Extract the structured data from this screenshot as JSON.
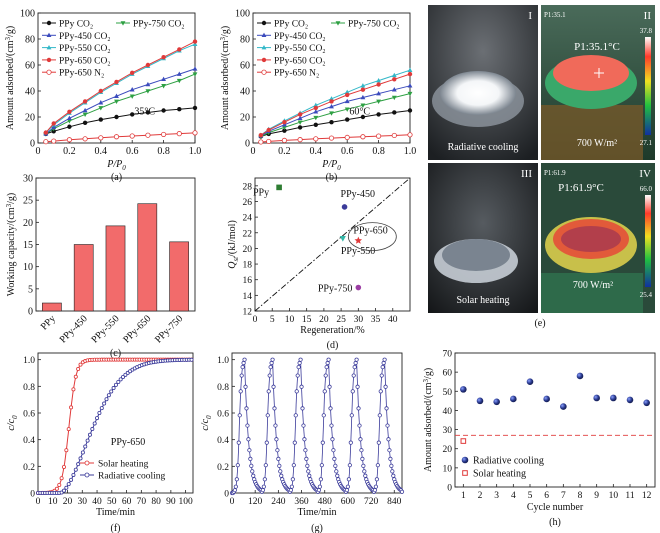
{
  "chart_data": [
    {
      "id": "a",
      "type": "line",
      "panel_label": "(a)",
      "xlabel": "P/P0",
      "ylabel": "Amount adsorbed/(cm3/g)",
      "xlim": [
        0,
        1.0
      ],
      "ylim": [
        0,
        100
      ],
      "xticks": [
        "0",
        "0.2",
        "0.4",
        "0.6",
        "0.8",
        "1.0"
      ],
      "yticks": [
        "0",
        "20",
        "40",
        "60",
        "80",
        "100"
      ],
      "annotation": "35°C",
      "series": [
        {
          "name": "PPy CO2",
          "legend": "PPy CO₂",
          "color": "#111111",
          "marker": "circle",
          "points": [
            [
              0.05,
              7
            ],
            [
              0.1,
              9
            ],
            [
              0.2,
              12.5
            ],
            [
              0.3,
              15.5
            ],
            [
              0.4,
              18
            ],
            [
              0.5,
              20
            ],
            [
              0.6,
              22
            ],
            [
              0.7,
              23.5
            ],
            [
              0.8,
              25
            ],
            [
              0.9,
              26
            ],
            [
              1.0,
              27
            ]
          ]
        },
        {
          "name": "PPy-750 CO2",
          "legend": "PPy-750 CO₂",
          "color": "#2ea043",
          "marker": "down",
          "points": [
            [
              0.05,
              7
            ],
            [
              0.1,
              11
            ],
            [
              0.2,
              17
            ],
            [
              0.3,
              22
            ],
            [
              0.4,
              27
            ],
            [
              0.5,
              32
            ],
            [
              0.6,
              36
            ],
            [
              0.7,
              40
            ],
            [
              0.8,
              44
            ],
            [
              0.9,
              48
            ],
            [
              1.0,
              53
            ]
          ]
        },
        {
          "name": "PPy-450 CO2",
          "legend": "PPy-450 CO₂",
          "color": "#3b4bbd",
          "marker": "up",
          "points": [
            [
              0.05,
              7
            ],
            [
              0.1,
              12
            ],
            [
              0.2,
              19
            ],
            [
              0.3,
              25
            ],
            [
              0.4,
              31
            ],
            [
              0.5,
              36
            ],
            [
              0.6,
              41
            ],
            [
              0.7,
              45
            ],
            [
              0.8,
              49
            ],
            [
              0.9,
              53
            ],
            [
              1.0,
              57
            ]
          ]
        },
        {
          "name": "PPy-550 CO2",
          "legend": "PPy-550 CO₂",
          "color": "#33b8c8",
          "marker": "up",
          "points": [
            [
              0.05,
              8
            ],
            [
              0.1,
              14
            ],
            [
              0.2,
              23
            ],
            [
              0.3,
              31
            ],
            [
              0.4,
              39
            ],
            [
              0.5,
              46
            ],
            [
              0.6,
              53
            ],
            [
              0.7,
              59
            ],
            [
              0.8,
              65
            ],
            [
              0.9,
              71
            ],
            [
              1.0,
              76
            ]
          ]
        },
        {
          "name": "PPy-650 CO2",
          "legend": "PPy-650 CO₂",
          "color": "#e03a3a",
          "marker": "circle",
          "points": [
            [
              0.05,
              8
            ],
            [
              0.1,
              15
            ],
            [
              0.2,
              24
            ],
            [
              0.3,
              32
            ],
            [
              0.4,
              40
            ],
            [
              0.5,
              47
            ],
            [
              0.6,
              54
            ],
            [
              0.7,
              60
            ],
            [
              0.8,
              66
            ],
            [
              0.9,
              72
            ],
            [
              1.0,
              78
            ]
          ]
        },
        {
          "name": "PPy-650 N2",
          "legend": "PPy-650 N₂",
          "color": "#e03a3a",
          "marker": "open-circle",
          "points": [
            [
              0.05,
              1
            ],
            [
              0.1,
              1.5
            ],
            [
              0.2,
              2.5
            ],
            [
              0.3,
              3.2
            ],
            [
              0.4,
              4
            ],
            [
              0.5,
              4.8
            ],
            [
              0.6,
              5.4
            ],
            [
              0.7,
              6
            ],
            [
              0.8,
              6.6
            ],
            [
              0.9,
              7.2
            ],
            [
              1.0,
              7.8
            ]
          ]
        }
      ]
    },
    {
      "id": "b",
      "type": "line",
      "panel_label": "(b)",
      "xlabel": "P/P0",
      "ylabel": "Amount adsorbed/(cm3/g)",
      "xlim": [
        0,
        1.0
      ],
      "ylim": [
        0,
        100
      ],
      "xticks": [
        "0",
        "0.2",
        "0.4",
        "0.6",
        "0.8",
        "1.0"
      ],
      "yticks": [
        "0",
        "20",
        "40",
        "60",
        "80",
        "100"
      ],
      "annotation": "60°C",
      "series": [
        {
          "name": "PPy CO2",
          "legend": "PPy CO₂",
          "color": "#111111",
          "marker": "circle",
          "points": [
            [
              0.05,
              5
            ],
            [
              0.1,
              7
            ],
            [
              0.2,
              9.5
            ],
            [
              0.3,
              12
            ],
            [
              0.4,
              14
            ],
            [
              0.5,
              16
            ],
            [
              0.6,
              18
            ],
            [
              0.7,
              20
            ],
            [
              0.8,
              22
            ],
            [
              0.9,
              23.5
            ],
            [
              1.0,
              25
            ]
          ]
        },
        {
          "name": "PPy-750 CO2",
          "legend": "PPy-750 CO₂",
          "color": "#2ea043",
          "marker": "down",
          "points": [
            [
              0.05,
              5
            ],
            [
              0.1,
              8
            ],
            [
              0.2,
              12
            ],
            [
              0.3,
              16
            ],
            [
              0.4,
              19.5
            ],
            [
              0.5,
              23
            ],
            [
              0.6,
              26
            ],
            [
              0.7,
              29
            ],
            [
              0.8,
              32
            ],
            [
              0.9,
              35
            ],
            [
              1.0,
              38
            ]
          ]
        },
        {
          "name": "PPy-450 CO2",
          "legend": "PPy-450 CO₂",
          "color": "#3b4bbd",
          "marker": "up",
          "points": [
            [
              0.05,
              5.5
            ],
            [
              0.1,
              9
            ],
            [
              0.2,
              14
            ],
            [
              0.3,
              19
            ],
            [
              0.4,
              24
            ],
            [
              0.5,
              28
            ],
            [
              0.6,
              32
            ],
            [
              0.7,
              35
            ],
            [
              0.8,
              38
            ],
            [
              0.9,
              41
            ],
            [
              1.0,
              44
            ]
          ]
        },
        {
          "name": "PPy-550 CO2",
          "legend": "PPy-550 CO₂",
          "color": "#33b8c8",
          "marker": "up",
          "points": [
            [
              0.05,
              6
            ],
            [
              0.1,
              10.5
            ],
            [
              0.2,
              17
            ],
            [
              0.3,
              23
            ],
            [
              0.4,
              29
            ],
            [
              0.5,
              34
            ],
            [
              0.6,
              39
            ],
            [
              0.7,
              44
            ],
            [
              0.8,
              48
            ],
            [
              0.9,
              52
            ],
            [
              1.0,
              56
            ]
          ]
        },
        {
          "name": "PPy-650 CO2",
          "legend": "PPy-650 CO₂",
          "color": "#e03a3a",
          "marker": "circle",
          "points": [
            [
              0.05,
              6
            ],
            [
              0.1,
              10
            ],
            [
              0.2,
              16
            ],
            [
              0.3,
              22
            ],
            [
              0.4,
              27
            ],
            [
              0.5,
              32
            ],
            [
              0.6,
              37
            ],
            [
              0.7,
              41
            ],
            [
              0.8,
              45
            ],
            [
              0.9,
              49
            ],
            [
              1.0,
              53
            ]
          ]
        },
        {
          "name": "PPy-650 N2",
          "legend": "PPy-650 N₂",
          "color": "#e03a3a",
          "marker": "open-circle",
          "points": [
            [
              0.05,
              0.8
            ],
            [
              0.1,
              1.2
            ],
            [
              0.2,
              2
            ],
            [
              0.3,
              2.6
            ],
            [
              0.4,
              3.2
            ],
            [
              0.5,
              3.8
            ],
            [
              0.6,
              4.3
            ],
            [
              0.7,
              4.8
            ],
            [
              0.8,
              5.3
            ],
            [
              0.9,
              5.8
            ],
            [
              1.0,
              6.3
            ]
          ]
        }
      ]
    },
    {
      "id": "c",
      "type": "bar",
      "panel_label": "(c)",
      "ylabel": "Working capacity/(cm3/g)",
      "ylim": [
        0,
        30
      ],
      "yticks": [
        "0",
        "5",
        "10",
        "15",
        "20",
        "25",
        "30"
      ],
      "categories": [
        "PPy",
        "PPy-450",
        "PPy-550",
        "PPy-650",
        "PPy-750"
      ],
      "values": [
        1.8,
        15,
        19.2,
        24.2,
        15.6
      ],
      "color": "#f26b6b"
    },
    {
      "id": "d",
      "type": "scatter",
      "panel_label": "(d)",
      "xlabel": "Regeneration/%",
      "ylabel": "Qst/(kJ/mol)",
      "xlim": [
        0,
        45
      ],
      "ylim": [
        12,
        29
      ],
      "xticks": [
        "0",
        "5",
        "10",
        "15",
        "20",
        "25",
        "30",
        "35",
        "40"
      ],
      "yticks": [
        "12",
        "14",
        "16",
        "18",
        "20",
        "22",
        "24",
        "26",
        "28"
      ],
      "points": [
        {
          "label": "PPy",
          "x": 7,
          "y": 27.8,
          "marker": "square",
          "color": "#2e7d32"
        },
        {
          "label": "PPy-450",
          "x": 26,
          "y": 25.3,
          "marker": "circle",
          "color": "#3b3b9a"
        },
        {
          "label": "PPy-550",
          "x": 25.5,
          "y": 21.3,
          "marker": "down",
          "color": "#33b8a8"
        },
        {
          "label": "PPy-650",
          "x": 30,
          "y": 21,
          "marker": "star",
          "color": "#e03a3a"
        },
        {
          "label": "PPy-750",
          "x": 30,
          "y": 15,
          "marker": "circle",
          "color": "#9c3fa4"
        }
      ],
      "reference_line": [
        [
          0,
          12
        ],
        [
          45,
          29
        ]
      ]
    },
    {
      "id": "f",
      "type": "line",
      "panel_label": "(f)",
      "xlabel": "Time/min",
      "ylabel": "c/c0",
      "xlim": [
        0,
        105
      ],
      "ylim": [
        0,
        1.05
      ],
      "xticks": [
        "0",
        "10",
        "20",
        "30",
        "40",
        "50",
        "60",
        "70",
        "80",
        "90",
        "100"
      ],
      "yticks": [
        "0",
        "0.2",
        "0.4",
        "0.6",
        "0.8",
        "1.0"
      ],
      "annotation": "PPy-650",
      "series": [
        {
          "name": "Solar heating",
          "color": "#e03a3a",
          "marker": "open-circle",
          "function": "1/(1+exp(-(t-21)/2.4))"
        },
        {
          "name": "Radiative cooling",
          "color": "#3b3b9a",
          "marker": "open-circle",
          "function": "1-exp(-((t-15)/28)^1.7)"
        }
      ]
    },
    {
      "id": "g",
      "type": "line",
      "panel_label": "(g)",
      "xlabel": "Time/min",
      "ylabel": "c/c0",
      "xlim": [
        0,
        880
      ],
      "ylim": [
        0,
        1.05
      ],
      "xticks": [
        "0",
        "120",
        "240",
        "360",
        "480",
        "600",
        "720",
        "840"
      ],
      "yticks": [
        "0",
        "0.2",
        "0.4",
        "0.6",
        "0.8",
        "1.0"
      ],
      "cycles": 6,
      "period_min": 145,
      "color": "#3b3b9a"
    },
    {
      "id": "h",
      "type": "scatter",
      "panel_label": "(h)",
      "xlabel": "Cycle number",
      "ylabel": "Amount adsorbed/(cm3/g)",
      "xlim": [
        0.5,
        12.5
      ],
      "ylim": [
        0,
        70
      ],
      "xticks": [
        "1",
        "2",
        "3",
        "4",
        "5",
        "6",
        "7",
        "8",
        "9",
        "10",
        "11",
        "12"
      ],
      "yticks": [
        "0",
        "10",
        "20",
        "30",
        "40",
        "50",
        "60",
        "70"
      ],
      "series": [
        {
          "name": "Radiative cooling",
          "color": "#2a3a8f",
          "marker": "sphere",
          "x": [
            1,
            2,
            3,
            4,
            5,
            6,
            7,
            8,
            9,
            10,
            11,
            12
          ],
          "values": [
            51,
            45,
            44.5,
            46,
            55,
            46,
            42,
            58,
            46.5,
            46.5,
            45.5,
            44
          ]
        },
        {
          "name": "Solar heating",
          "color": "#e03a3a",
          "marker": "square",
          "x": [
            1
          ],
          "values": [
            24
          ]
        }
      ],
      "reference_value": 27
    }
  ],
  "photo_panel": {
    "panel_label": "(e)",
    "cells": [
      {
        "roman": "I",
        "caption": "Radiative cooling"
      },
      {
        "roman": "II",
        "title": "P1:35.1",
        "reading": "P1:35.1°C",
        "irradiance": "700 W/m²",
        "scale_max": "37.8",
        "scale_min": "27.1"
      },
      {
        "roman": "III",
        "caption": "Solar heating"
      },
      {
        "roman": "IV",
        "title": "P1:61.9",
        "reading": "P1:61.9°C",
        "irradiance": "700 W/m²",
        "scale_max": "66.0",
        "scale_min": "25.4"
      }
    ]
  }
}
